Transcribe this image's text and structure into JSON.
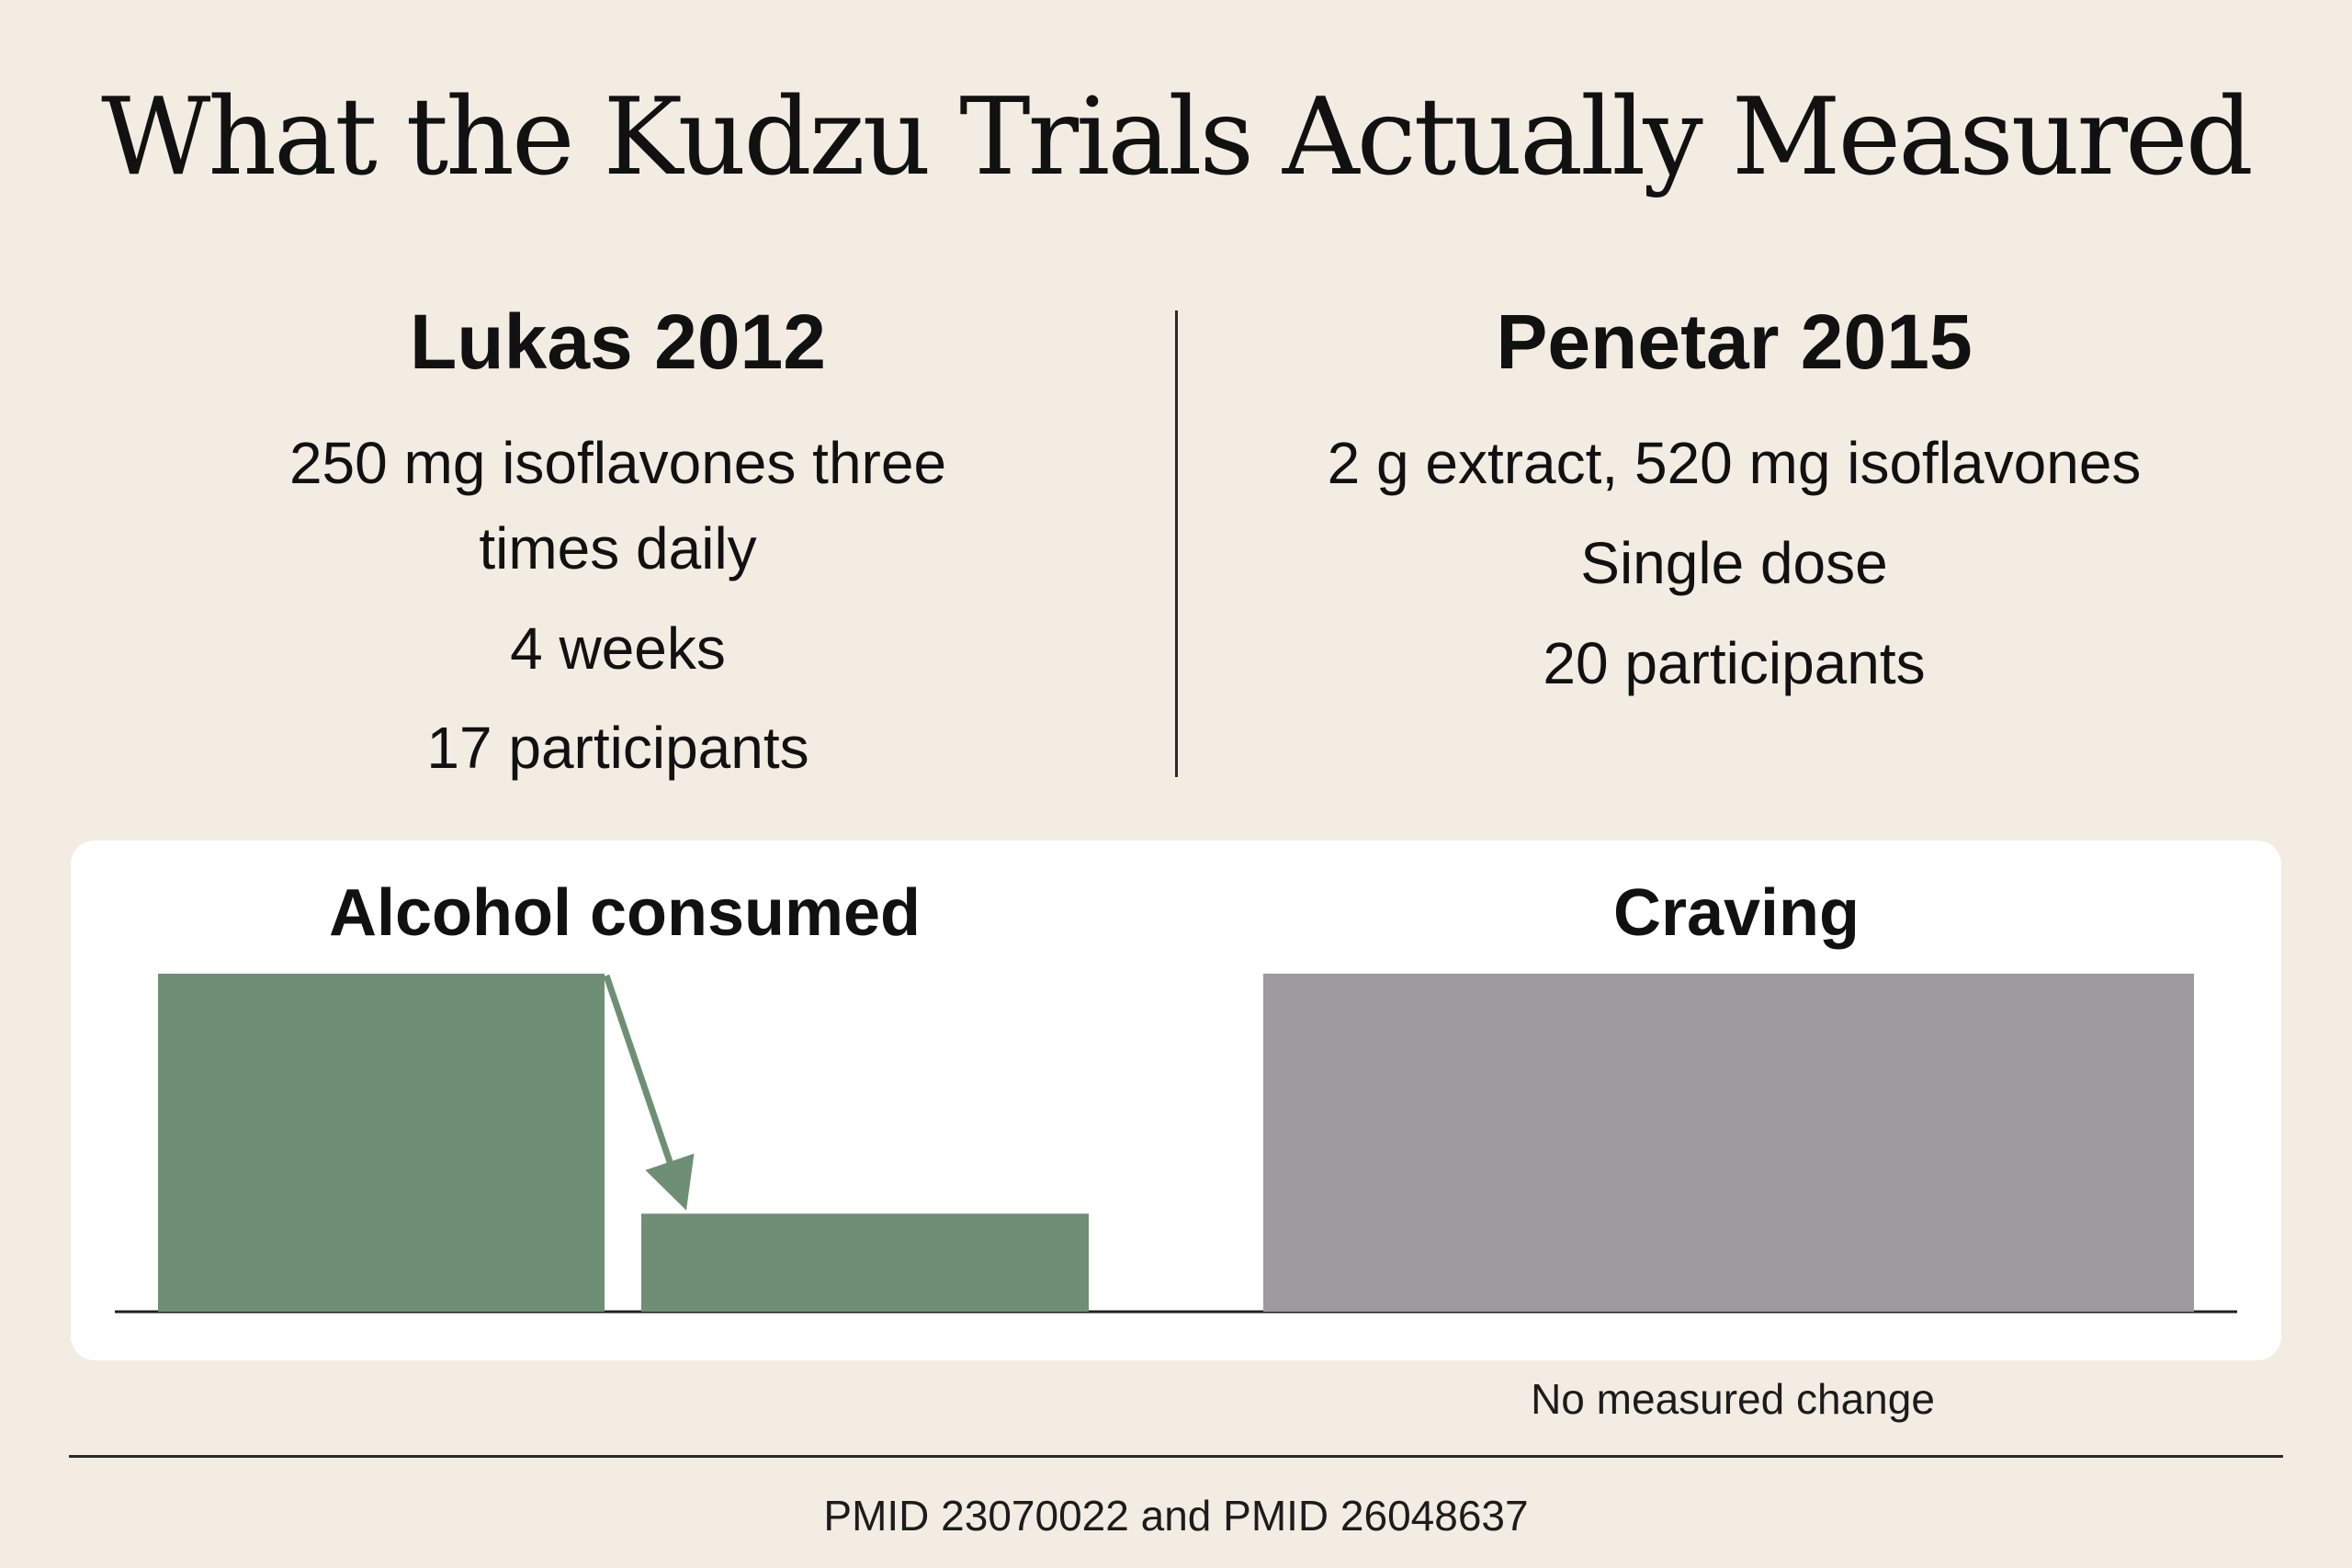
{
  "title": "What the Kudzu Trials Actually Measured",
  "studies": [
    {
      "name": "Lukas 2012",
      "lines": [
        "250 mg isoflavones three times daily",
        "4 weeks",
        "17 participants"
      ]
    },
    {
      "name": "Penetar 2015",
      "lines": [
        "2 g extract, 520 mg isoflavones",
        "Single dose",
        "20 participants"
      ]
    }
  ],
  "chart_data": [
    {
      "type": "bar",
      "title": "Alcohol consumed",
      "series": [
        {
          "values": [
            1.0,
            0.29
          ]
        }
      ],
      "colors": [
        "#6e8f74"
      ],
      "annotation": "arrow from first bar to second bar (decrease)"
    },
    {
      "type": "bar",
      "title": "Craving",
      "series": [
        {
          "values": [
            1.0
          ]
        }
      ],
      "colors": [
        "#9c9a9f"
      ],
      "note": "No measured change"
    }
  ],
  "colors": {
    "background": "#f3ece2",
    "panel": "#ffffff",
    "alcohol_bar": "#6e8f74",
    "craving_bar": "#9c9a9f"
  },
  "footer": "PMID 23070022 and PMID 26048637"
}
